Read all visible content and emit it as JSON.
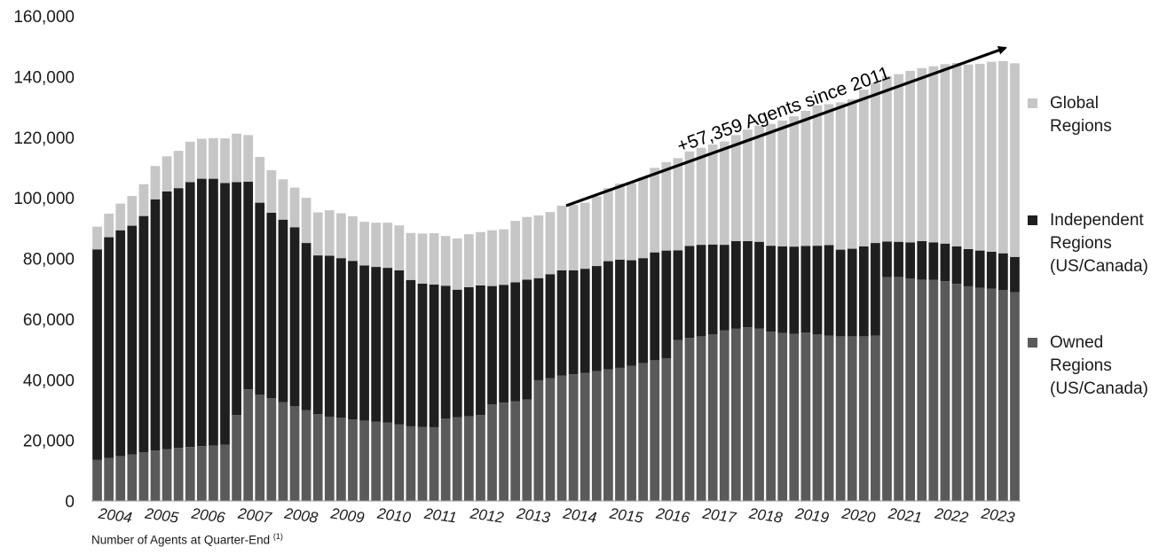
{
  "chart_data": {
    "type": "bar",
    "stacked": true,
    "ylim": [
      0,
      160000
    ],
    "yticks": [
      "0",
      "20,000",
      "40,000",
      "60,000",
      "80,000",
      "100,000",
      "120,000",
      "140,000",
      "160,000"
    ],
    "year_labels": [
      "2004",
      "2005",
      "2006",
      "2007",
      "2008",
      "2009",
      "2010",
      "2011",
      "2012",
      "2013",
      "2014",
      "2015",
      "2016",
      "2017",
      "2018",
      "2019",
      "2020",
      "2021",
      "2022",
      "2023"
    ],
    "categories": [
      "Q1 2004",
      "Q2 2004",
      "Q3 2004",
      "Q4 2004",
      "Q1 2005",
      "Q2 2005",
      "Q3 2005",
      "Q4 2005",
      "Q1 2006",
      "Q2 2006",
      "Q3 2006",
      "Q4 2006",
      "Q1 2007",
      "Q2 2007",
      "Q3 2007",
      "Q4 2007",
      "Q1 2008",
      "Q2 2008",
      "Q3 2008",
      "Q4 2008",
      "Q1 2009",
      "Q2 2009",
      "Q3 2009",
      "Q4 2009",
      "Q1 2010",
      "Q2 2010",
      "Q3 2010",
      "Q4 2010",
      "Q1 2011",
      "Q2 2011",
      "Q3 2011",
      "Q4 2011",
      "Q1 2012",
      "Q2 2012",
      "Q3 2012",
      "Q4 2012",
      "Q1 2013",
      "Q2 2013",
      "Q3 2013",
      "Q4 2013",
      "Q1 2014",
      "Q2 2014",
      "Q3 2014",
      "Q4 2014",
      "Q1 2015",
      "Q2 2015",
      "Q3 2015",
      "Q4 2015",
      "Q1 2016",
      "Q2 2016",
      "Q3 2016",
      "Q4 2016",
      "Q1 2017",
      "Q2 2017",
      "Q3 2017",
      "Q4 2017",
      "Q1 2018",
      "Q2 2018",
      "Q3 2018",
      "Q4 2018",
      "Q1 2019",
      "Q2 2019",
      "Q3 2019",
      "Q4 2019",
      "Q1 2020",
      "Q2 2020",
      "Q3 2020",
      "Q4 2020",
      "Q1 2021",
      "Q2 2021",
      "Q3 2021",
      "Q4 2021",
      "Q1 2022",
      "Q2 2022",
      "Q3 2022",
      "Q4 2022",
      "Q1 2023",
      "Q2 2023",
      "Q3 2023",
      "Q4 2023"
    ],
    "series": [
      {
        "name": "Owned Regions (US/Canada)",
        "color": "#5a5a5a",
        "values": [
          13500,
          14200,
          14800,
          15300,
          16000,
          16600,
          17100,
          17500,
          17800,
          18100,
          18300,
          18500,
          28300,
          36800,
          35100,
          33900,
          32600,
          31300,
          29900,
          28600,
          27800,
          27400,
          26900,
          26500,
          26100,
          25800,
          25200,
          24600,
          24400,
          24300,
          27200,
          27600,
          27900,
          28300,
          31800,
          32400,
          32900,
          33500,
          39800,
          40500,
          41300,
          41800,
          42200,
          42800,
          43400,
          43900,
          44600,
          45500,
          46400,
          47000,
          53100,
          53800,
          54300,
          55000,
          56300,
          56800,
          57300,
          56900,
          55800,
          55400,
          55100,
          55500,
          54900,
          54500,
          54300,
          54300,
          54300,
          54500,
          73800,
          73900,
          73400,
          73000,
          72900,
          72500,
          71600,
          70800,
          70300,
          70000,
          69600,
          68800
        ]
      },
      {
        "name": "Independent Regions (US/Canada)",
        "color": "#1f1f1f",
        "values": [
          69500,
          72800,
          74500,
          75500,
          78000,
          82900,
          85000,
          85700,
          87400,
          88200,
          88000,
          86400,
          76900,
          68500,
          63300,
          61200,
          60200,
          59000,
          55200,
          52400,
          53100,
          52700,
          52300,
          51200,
          51100,
          51100,
          50900,
          48300,
          47300,
          47100,
          43800,
          42100,
          42600,
          42800,
          39100,
          38900,
          39200,
          39500,
          33700,
          34300,
          34800,
          34300,
          34400,
          34700,
          35700,
          35700,
          34800,
          34600,
          35600,
          35600,
          29600,
          30300,
          30200,
          29600,
          28200,
          28900,
          28400,
          28600,
          28400,
          28600,
          28800,
          28600,
          29300,
          29900,
          28600,
          28900,
          29700,
          30600,
          11800,
          11600,
          11900,
          12700,
          12400,
          12400,
          12400,
          12300,
          12300,
          12200,
          12100,
          11700
        ]
      },
      {
        "name": "Global Regions",
        "color": "#c6c6c6",
        "values": [
          7500,
          7800,
          8800,
          9800,
          10500,
          11000,
          11600,
          12300,
          13300,
          13200,
          13400,
          14700,
          16000,
          15400,
          15100,
          14000,
          13300,
          13100,
          14900,
          14200,
          15000,
          14800,
          14700,
          14400,
          14600,
          14900,
          14800,
          15500,
          16500,
          16900,
          16400,
          16900,
          17500,
          17600,
          18400,
          18300,
          20300,
          20700,
          20700,
          20500,
          21300,
          21600,
          21800,
          23000,
          24100,
          25100,
          25500,
          26600,
          27900,
          29200,
          30400,
          31200,
          32000,
          33000,
          34100,
          35000,
          36800,
          38300,
          40200,
          41500,
          43000,
          44600,
          46300,
          46500,
          48600,
          49300,
          51700,
          52800,
          54600,
          55300,
          56600,
          57100,
          58100,
          59200,
          60500,
          60900,
          61600,
          62700,
          63400,
          63900
        ]
      }
    ],
    "annotation": "+57,359 Agents since 2011",
    "caption": "Number of Agents at Quarter-End",
    "caption_note": "(1)"
  },
  "legend": {
    "items": [
      {
        "label": "Global\nRegions",
        "color": "#c6c6c6"
      },
      {
        "label": "Independent\nRegions\n(US/Canada)",
        "color": "#1f1f1f"
      },
      {
        "label": "Owned\nRegions\n(US/Canada)",
        "color": "#5a5a5a"
      }
    ]
  }
}
